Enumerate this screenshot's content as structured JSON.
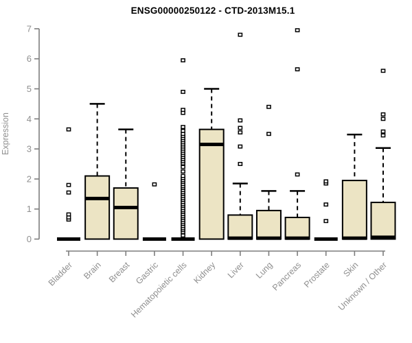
{
  "chart_data": {
    "type": "boxplot",
    "title": "ENSG00000250122 - CTD-2013M15.1",
    "ylabel": "Expression",
    "xlabel": "",
    "ylim": [
      0,
      7
    ],
    "yticks": [
      0,
      1,
      2,
      3,
      4,
      5,
      6,
      7
    ],
    "grid": false,
    "x_label_rotation": 45,
    "categories": [
      "Bladder",
      "Brain",
      "Breast",
      "Gastric",
      "Hematopoietic cells",
      "Kidney",
      "Liver",
      "Lung",
      "Pancreas",
      "Prostate",
      "Skin",
      "Unknown / Other"
    ],
    "series": [
      {
        "name": "Bladder",
        "q1": 0,
        "median": 0,
        "q3": 0,
        "whisker_low": 0,
        "whisker_high": 0,
        "outliers": [
          0.65,
          0.72,
          0.82,
          1.55,
          1.8,
          3.65
        ]
      },
      {
        "name": "Brain",
        "q1": 0,
        "median": 1.35,
        "q3": 2.1,
        "whisker_low": 0,
        "whisker_high": 4.5,
        "outliers": []
      },
      {
        "name": "Breast",
        "q1": 0,
        "median": 1.05,
        "q3": 1.7,
        "whisker_low": 0,
        "whisker_high": 3.65,
        "outliers": []
      },
      {
        "name": "Gastric",
        "q1": 0,
        "median": 0,
        "q3": 0,
        "whisker_low": 0,
        "whisker_high": 0,
        "outliers": [
          1.82
        ]
      },
      {
        "name": "Hematopoietic cells",
        "q1": 0,
        "median": 0,
        "q3": 0,
        "whisker_low": 0,
        "whisker_high": 0,
        "outliers": [
          0.12,
          0.23,
          0.3,
          0.36,
          0.43,
          0.5,
          0.56,
          0.63,
          0.7,
          0.76,
          0.83,
          0.9,
          0.96,
          1.03,
          1.1,
          1.16,
          1.23,
          1.3,
          1.36,
          1.43,
          1.5,
          1.56,
          1.63,
          1.7,
          1.76,
          1.83,
          1.9,
          1.96,
          2.03,
          2.1,
          2.25,
          2.4,
          2.52,
          2.59,
          2.66,
          2.73,
          2.8,
          2.87,
          2.94,
          3.01,
          3.08,
          3.15,
          3.22,
          3.29,
          3.36,
          3.43,
          3.5,
          3.6,
          3.73,
          4.2,
          4.3,
          4.9,
          5.95
        ]
      },
      {
        "name": "Kidney",
        "q1": 0,
        "median": 3.15,
        "q3": 3.65,
        "whisker_low": 0,
        "whisker_high": 5.0,
        "outliers": []
      },
      {
        "name": "Liver",
        "q1": 0,
        "median": 0.03,
        "q3": 0.8,
        "whisker_low": 0,
        "whisker_high": 1.85,
        "outliers": [
          2.5,
          3.08,
          3.55,
          3.7,
          3.95,
          6.8
        ]
      },
      {
        "name": "Lung",
        "q1": 0,
        "median": 0.03,
        "q3": 0.95,
        "whisker_low": 0,
        "whisker_high": 1.6,
        "outliers": [
          3.5,
          4.4
        ]
      },
      {
        "name": "Pancreas",
        "q1": 0,
        "median": 0.03,
        "q3": 0.72,
        "whisker_low": 0,
        "whisker_high": 1.6,
        "outliers": [
          2.15,
          5.65,
          6.95
        ]
      },
      {
        "name": "Prostate",
        "q1": 0,
        "median": 0,
        "q3": 0,
        "whisker_low": 0,
        "whisker_high": 0,
        "outliers": [
          0.6,
          1.15,
          1.85,
          1.92
        ]
      },
      {
        "name": "Skin",
        "q1": 0,
        "median": 0.03,
        "q3": 1.95,
        "whisker_low": 0,
        "whisker_high": 3.48,
        "outliers": []
      },
      {
        "name": "Unknown / Other",
        "q1": 0,
        "median": 0.06,
        "q3": 1.22,
        "whisker_low": 0,
        "whisker_high": 3.03,
        "outliers": [
          3.45,
          3.58,
          4.0,
          4.15,
          5.6
        ]
      }
    ],
    "colors": {
      "box_fill": "#ece4c4",
      "box_border": "#000000",
      "median": "#000000",
      "whisker": "#000000",
      "outlier_fill": "#ffffff",
      "outlier_border": "#000000",
      "axis": "#7d7d7d",
      "tick_text": "#8f8f8f",
      "title_text": "#000000",
      "background": "#ffffff"
    }
  }
}
